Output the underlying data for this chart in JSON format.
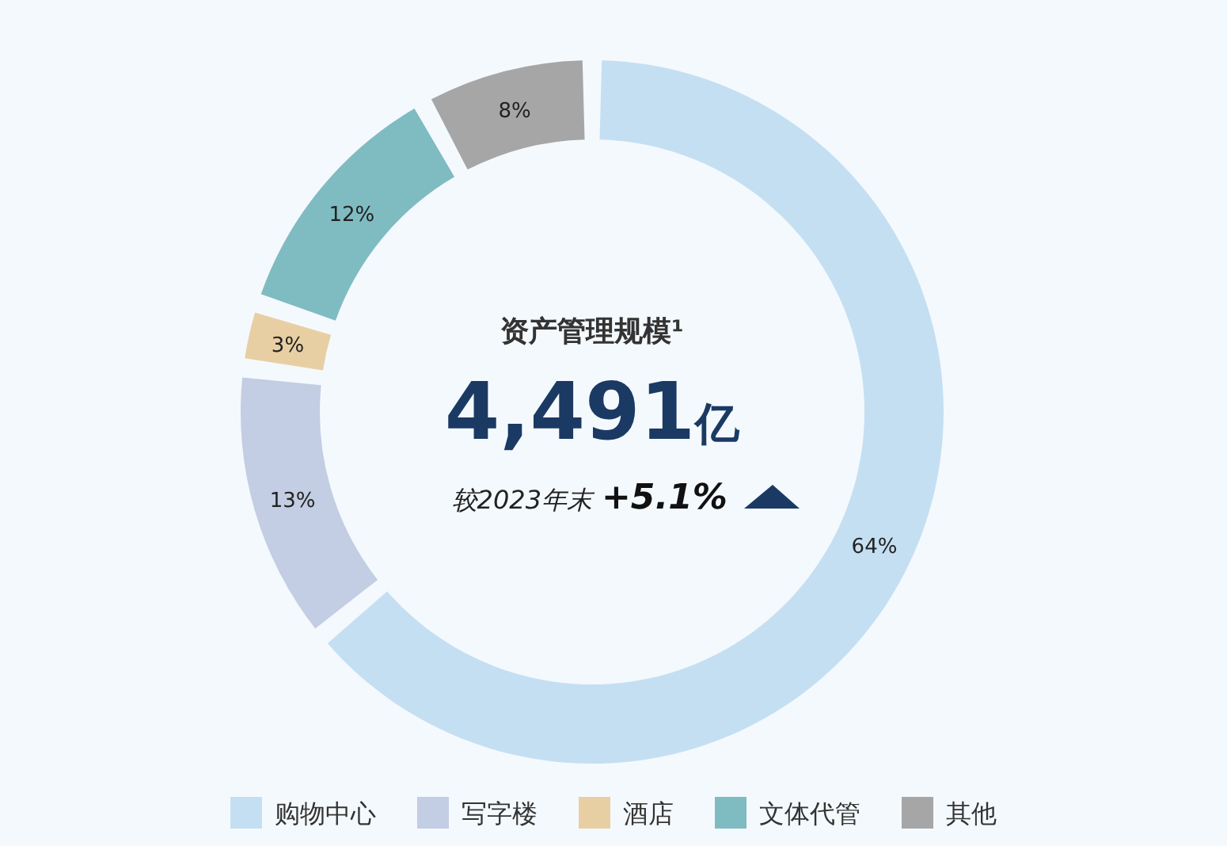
{
  "chart_data": {
    "type": "donut",
    "title": "资产管理规模¹",
    "annotations": [
      "4,491亿",
      "较2023年末",
      "+5.1%"
    ],
    "categories": [
      "购物中心",
      "写字楼",
      "酒店",
      "文体代管",
      "其他"
    ],
    "values": [
      64,
      13,
      3,
      12,
      8
    ],
    "value_labels": [
      "64%",
      "13%",
      "3%",
      "12%",
      "8%"
    ],
    "colors": [
      "#c5dff2",
      "#c3cde3",
      "#e8cfa3",
      "#7fbcc2",
      "#a6a6a6"
    ],
    "legend": "bottom"
  }
}
